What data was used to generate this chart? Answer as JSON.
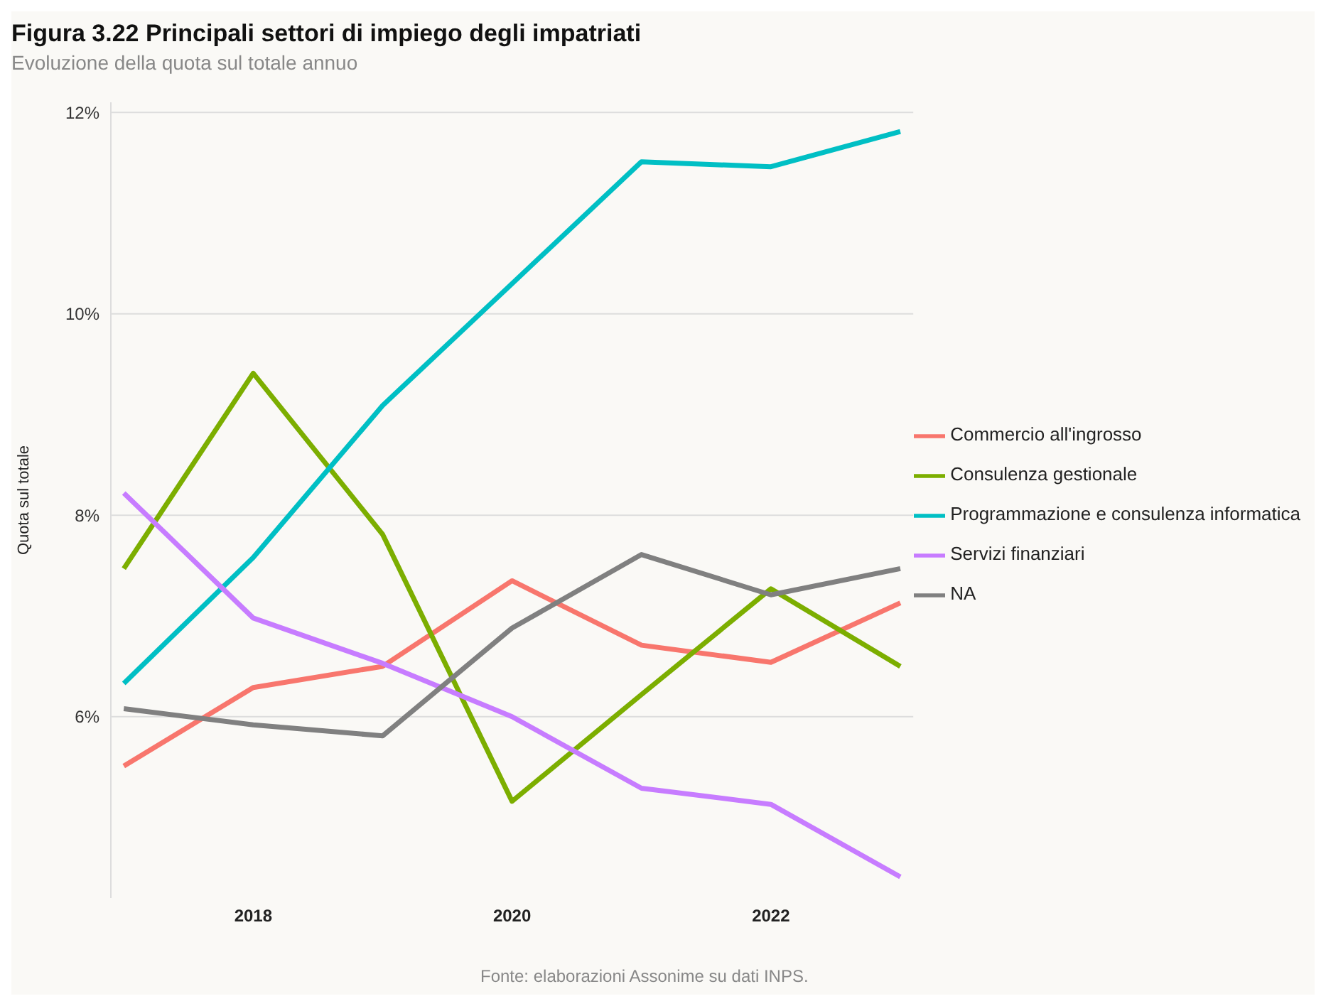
{
  "chart_data": {
    "type": "line",
    "title": "Figura 3.22   Principali settori di impiego degli impatriati",
    "subtitle": "Evoluzione della quota sul totale annuo",
    "ylabel": "Quota sul totale",
    "annotations": [
      "Fonte: elaborazioni Assonime su dati INPS."
    ],
    "x": [
      2017,
      2018,
      2019,
      2020,
      2021,
      2022,
      2023
    ],
    "series": [
      {
        "name": "Commercio all'ingrosso",
        "color": "#f8766d",
        "values": [
          5.51,
          6.29,
          6.5,
          7.35,
          6.71,
          6.54,
          7.13
        ]
      },
      {
        "name": "Consulenza gestionale",
        "color": "#7cae00",
        "values": [
          7.47,
          9.41,
          7.81,
          5.16,
          6.22,
          7.27,
          6.5
        ]
      },
      {
        "name": "Programmazione e consulenza informatica",
        "color": "#00bfc4",
        "values": [
          6.33,
          7.58,
          9.09,
          10.3,
          11.51,
          11.46,
          11.81
        ]
      },
      {
        "name": "Servizi finanziari",
        "color": "#c77cff",
        "values": [
          8.22,
          6.98,
          6.53,
          6.0,
          5.29,
          5.13,
          4.41
        ]
      },
      {
        "name": "NA",
        "color": "#808080",
        "values": [
          6.08,
          5.92,
          5.81,
          6.88,
          7.61,
          7.21,
          7.47
        ]
      }
    ],
    "xlim": [
      2016.9,
      2023.1
    ],
    "xticks": [
      2018,
      2020,
      2022
    ],
    "ylim": [
      4.2,
      12.1
    ],
    "yticks": [
      {
        "value": 6,
        "label": "6%"
      },
      {
        "value": 8,
        "label": "8%"
      },
      {
        "value": 10,
        "label": "10%"
      },
      {
        "value": 12,
        "label": "12%"
      }
    ],
    "grid": "y",
    "legend": "right",
    "marker": "none",
    "line_style": "solid"
  }
}
